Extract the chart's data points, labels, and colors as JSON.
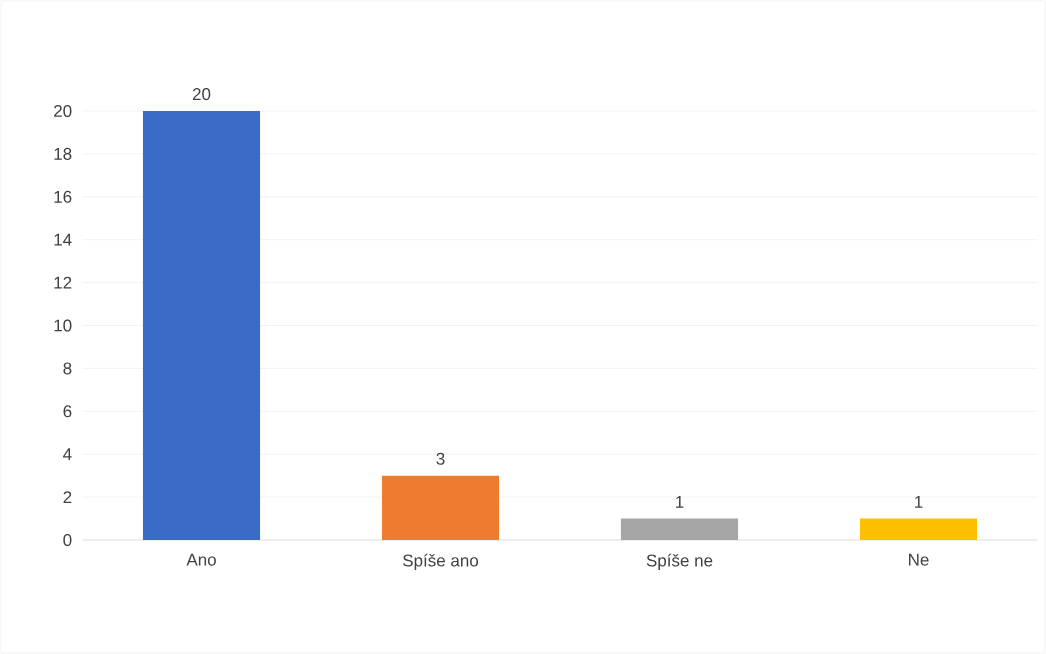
{
  "chart_data": {
    "type": "bar",
    "categories": [
      "Ano",
      "Spíše ano",
      "Spíše ne",
      "Ne"
    ],
    "values": [
      20,
      3,
      1,
      1
    ],
    "colors": [
      "#3a6bc6",
      "#ef7b2e",
      "#a5a5a5",
      "#fcc000"
    ],
    "ylim": [
      0,
      20
    ],
    "yticks": [
      0,
      2,
      4,
      6,
      8,
      10,
      12,
      14,
      16,
      18,
      20
    ],
    "grid": "y",
    "data_labels": true
  }
}
